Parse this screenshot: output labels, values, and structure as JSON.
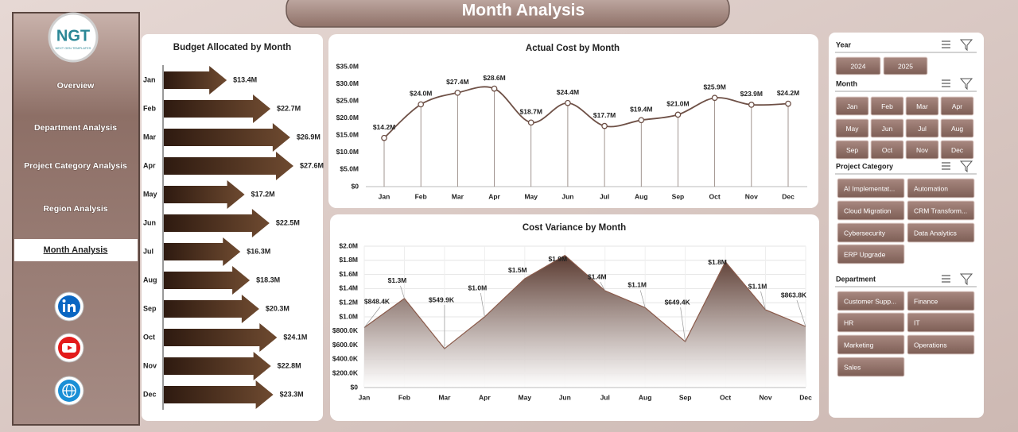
{
  "header": {
    "title": "Month Analysis"
  },
  "logo": {
    "text": "NGT",
    "tagline": "NEXT GEN TEMPLATES"
  },
  "nav": [
    {
      "label": "Overview"
    },
    {
      "label": "Department Analysis"
    },
    {
      "label": "Project Category Analysis"
    },
    {
      "label": "Region Analysis"
    },
    {
      "label": "Month Analysis",
      "selected": true
    }
  ],
  "slicers": [
    {
      "title": "Year",
      "items": [
        "2024",
        "2025"
      ]
    },
    {
      "title": "Month",
      "items": [
        "Jan",
        "Feb",
        "Mar",
        "Apr",
        "May",
        "Jun",
        "Jul",
        "Aug",
        "Sep",
        "Oct",
        "Nov",
        "Dec"
      ]
    },
    {
      "title": "Project Category",
      "items": [
        "AI Implementat...",
        "Automation",
        "Cloud Migration",
        "CRM Transform...",
        "Cybersecurity",
        "Data Analytics",
        "ERP Upgrade"
      ]
    },
    {
      "title": "Department",
      "items": [
        "Customer Supp...",
        "Finance",
        "HR",
        "IT",
        "Marketing",
        "Operations",
        "Sales"
      ]
    }
  ],
  "chart_data": [
    {
      "type": "bar",
      "orientation": "horizontal",
      "title": "Budget Allocated by Month",
      "categories": [
        "Jan",
        "Feb",
        "Mar",
        "Apr",
        "May",
        "Jun",
        "Jul",
        "Aug",
        "Sep",
        "Oct",
        "Nov",
        "Dec"
      ],
      "values": [
        13.4,
        22.7,
        26.9,
        27.6,
        17.2,
        22.5,
        16.3,
        18.3,
        20.3,
        24.1,
        22.8,
        23.3
      ],
      "value_labels": [
        "$13.4M",
        "$22.7M",
        "$26.9M",
        "$27.6M",
        "$17.2M",
        "$22.5M",
        "$16.3M",
        "$18.3M",
        "$20.3M",
        "$24.1M",
        "$22.8M",
        "$23.3M"
      ],
      "color": "#4a2e1c"
    },
    {
      "type": "line",
      "title": "Actual Cost by Month",
      "categories": [
        "Jan",
        "Feb",
        "Mar",
        "Apr",
        "May",
        "Jun",
        "Jul",
        "Aug",
        "Sep",
        "Oct",
        "Nov",
        "Dec"
      ],
      "values": [
        14.2,
        24.0,
        27.4,
        28.6,
        18.7,
        24.4,
        17.7,
        19.4,
        21.0,
        25.9,
        23.9,
        24.2
      ],
      "value_labels": [
        "$14.2M",
        "$24.0M",
        "$27.4M",
        "$28.6M",
        "$18.7M",
        "$24.4M",
        "$17.7M",
        "$19.4M",
        "$21.0M",
        "$25.9M",
        "$23.9M",
        "$24.2M"
      ],
      "ylim": [
        0,
        35
      ],
      "yticks": [
        {
          "value": 0,
          "label": "$0"
        },
        {
          "value": 5,
          "label": "$5.0M"
        },
        {
          "value": 10,
          "label": "$10.0M"
        },
        {
          "value": 15,
          "label": "$15.0M"
        },
        {
          "value": 20,
          "label": "$20.0M"
        },
        {
          "value": 25,
          "label": "$25.0M"
        },
        {
          "value": 30,
          "label": "$30.0M"
        },
        {
          "value": 35,
          "label": "$35.0M"
        }
      ],
      "color": "#6e5046",
      "grid": false
    },
    {
      "type": "area",
      "title": "Cost Variance by Month",
      "categories": [
        "Jan",
        "Feb",
        "Mar",
        "Apr",
        "May",
        "Jun",
        "Jul",
        "Aug",
        "Sep",
        "Oct",
        "Nov",
        "Dec"
      ],
      "values": [
        848400,
        1260000,
        549900,
        1000000,
        1540000,
        1870000,
        1370000,
        1130000,
        649400,
        1780000,
        1100000,
        863800
      ],
      "value_labels": [
        "$848.4K",
        "$1.3M",
        "$549.9K",
        "$1.0M",
        "$1.5M",
        "$1.9M",
        "$1.4M",
        "$1.1M",
        "$649.4K",
        "$1.8M",
        "$1.1M",
        "$863.8K"
      ],
      "ylim": [
        0,
        2000000
      ],
      "yticks": [
        {
          "value": 0,
          "label": "$0"
        },
        {
          "value": 200000,
          "label": "$200.0K"
        },
        {
          "value": 400000,
          "label": "$400.0K"
        },
        {
          "value": 600000,
          "label": "$600.0K"
        },
        {
          "value": 800000,
          "label": "$800.0K"
        },
        {
          "value": 1000000,
          "label": "$1.0M"
        },
        {
          "value": 1200000,
          "label": "$1.2M"
        },
        {
          "value": 1400000,
          "label": "$1.4M"
        },
        {
          "value": 1600000,
          "label": "$1.6M"
        },
        {
          "value": 1800000,
          "label": "$1.8M"
        },
        {
          "value": 2000000,
          "label": "$2.0M"
        }
      ],
      "color": "#6e5046",
      "grid": true
    }
  ]
}
